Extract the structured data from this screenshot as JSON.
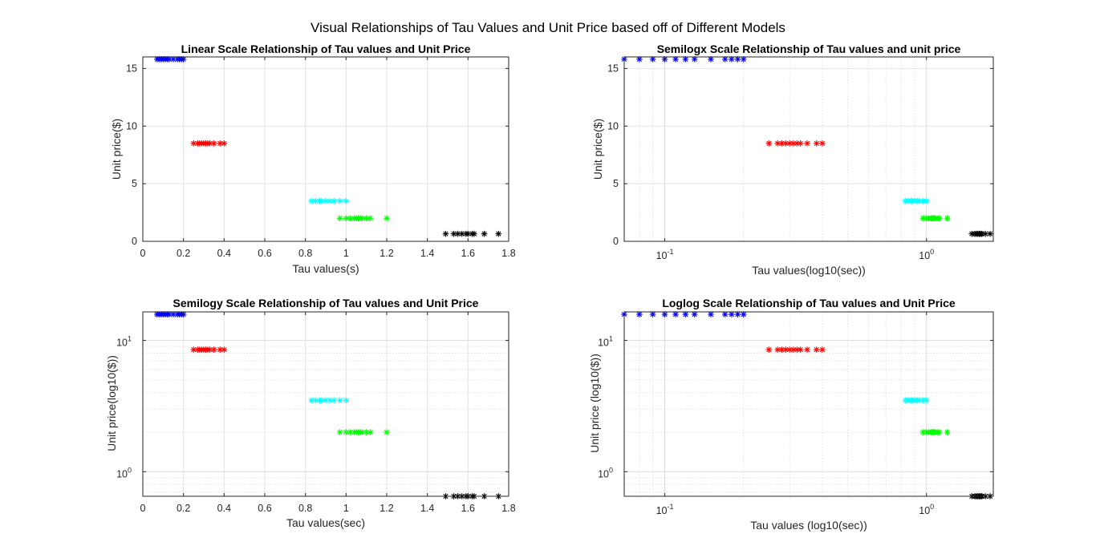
{
  "figure": {
    "title": "Visual Relationships of Tau Values and Unit Price based off of Different Models"
  },
  "chart_data": [
    {
      "type": "scatter",
      "scale": "linear",
      "title": "Linear Scale Relationship of Tau values and Unit Price",
      "xlabel": "Tau values(s)",
      "ylabel": "Unit price($)",
      "xscale": "linear",
      "yscale": "linear",
      "xlim": [
        0,
        1.8
      ],
      "ylim": [
        0,
        16
      ],
      "xticks": [
        0,
        0.2,
        0.4,
        0.6,
        0.8,
        1,
        1.2,
        1.4,
        1.6,
        1.8
      ],
      "xticklabels": [
        "0",
        "0.2",
        "0.4",
        "0.6",
        "0.8",
        "1",
        "1.2",
        "1.4",
        "1.6",
        "1.8"
      ],
      "yticks": [
        0,
        5,
        10,
        15
      ],
      "yticklabels": [
        "0",
        "5",
        "10",
        "15"
      ],
      "grid": true,
      "marker": "*"
    },
    {
      "type": "scatter",
      "scale": "semilogx",
      "title": "Semilogx Scale Relationship of Tau values and unit price",
      "xlabel": "Tau values(log10(sec))",
      "ylabel": "Unit price($)",
      "xscale": "log",
      "yscale": "linear",
      "xlim": [
        0.07,
        1.8
      ],
      "ylim": [
        0,
        16
      ],
      "xticks": [
        0.1,
        1
      ],
      "xticklabels": [
        [
          "10",
          "-1"
        ],
        [
          "10",
          "0"
        ]
      ],
      "yticks": [
        0,
        5,
        10,
        15
      ],
      "yticklabels": [
        "0",
        "5",
        "10",
        "15"
      ],
      "grid": true,
      "marker": "*"
    },
    {
      "type": "scatter",
      "scale": "semilogy",
      "title": "Semilogy Scale Relationship of Tau values and Unit Price",
      "xlabel": "Tau values(sec)",
      "ylabel": "Unit price(log10($))",
      "xscale": "linear",
      "yscale": "log",
      "xlim": [
        0,
        1.8
      ],
      "ylim": [
        0.65,
        16.5
      ],
      "xticks": [
        0,
        0.2,
        0.4,
        0.6,
        0.8,
        1,
        1.2,
        1.4,
        1.6,
        1.8
      ],
      "xticklabels": [
        "0",
        "0.2",
        "0.4",
        "0.6",
        "0.8",
        "1",
        "1.2",
        "1.4",
        "1.6",
        "1.8"
      ],
      "yticks": [
        1,
        10
      ],
      "yticklabels": [
        [
          "10",
          "0"
        ],
        [
          "10",
          "1"
        ]
      ],
      "grid": true,
      "marker": "*"
    },
    {
      "type": "scatter",
      "scale": "loglog",
      "title": "Loglog Scale Relationship of Tau values and Unit Price",
      "xlabel": "Tau values (log10(sec))",
      "ylabel": "Unit price (log10($))",
      "xscale": "log",
      "yscale": "log",
      "xlim": [
        0.07,
        1.8
      ],
      "ylim": [
        0.65,
        16.5
      ],
      "xticks": [
        0.1,
        1
      ],
      "xticklabels": [
        [
          "10",
          "-1"
        ],
        [
          "10",
          "0"
        ]
      ],
      "yticks": [
        1,
        10
      ],
      "yticklabels": [
        [
          "10",
          "0"
        ],
        [
          "10",
          "1"
        ]
      ],
      "grid": true,
      "marker": "*"
    }
  ],
  "series": [
    {
      "color": "#0000ff",
      "y": 15.8,
      "x": [
        0.07,
        0.08,
        0.09,
        0.1,
        0.11,
        0.12,
        0.13,
        0.15,
        0.17,
        0.18,
        0.19,
        0.2
      ]
    },
    {
      "color": "#ff0000",
      "y": 8.5,
      "x": [
        0.25,
        0.27,
        0.28,
        0.29,
        0.3,
        0.31,
        0.32,
        0.33,
        0.35,
        0.38,
        0.4
      ]
    },
    {
      "color": "#00ffff",
      "y": 3.5,
      "x": [
        0.83,
        0.85,
        0.87,
        0.88,
        0.9,
        0.92,
        0.94,
        0.97,
        1.0
      ]
    },
    {
      "color": "#00ff00",
      "y": 2.0,
      "x": [
        0.97,
        1.0,
        1.02,
        1.04,
        1.05,
        1.06,
        1.07,
        1.08,
        1.1,
        1.12,
        1.2
      ]
    },
    {
      "color": "#000000",
      "y": 0.65,
      "x": [
        1.49,
        1.53,
        1.55,
        1.57,
        1.59,
        1.6,
        1.62,
        1.63,
        1.68,
        1.75
      ]
    }
  ]
}
